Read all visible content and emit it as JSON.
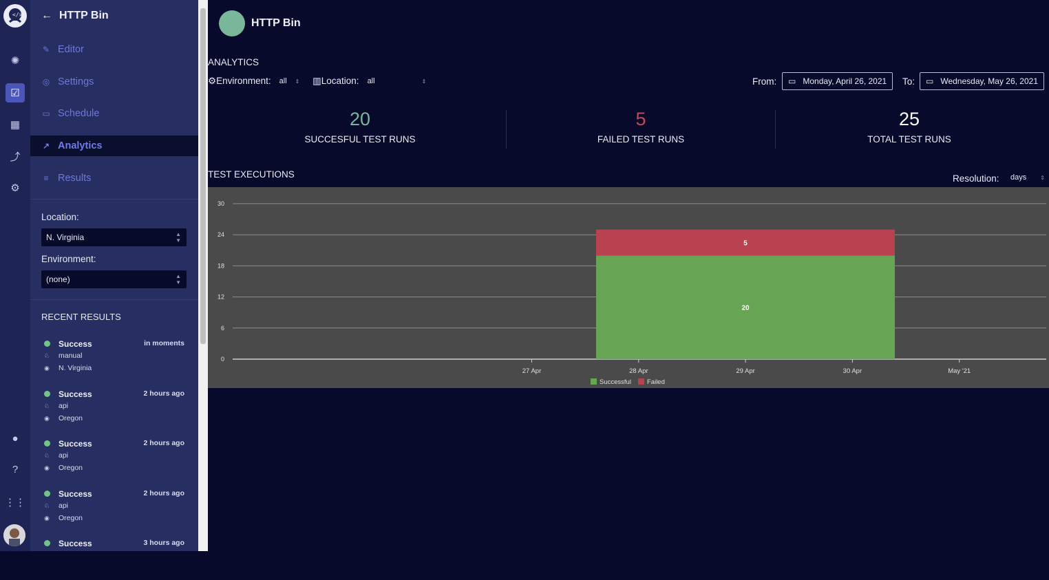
{
  "app": {
    "project_title": "HTTP Bin"
  },
  "rail": {
    "icons": [
      "logo-icon",
      "dashboard-icon",
      "checklist-icon",
      "grid-icon",
      "trend-icon",
      "settings-icon",
      "bulb-icon",
      "help-icon",
      "apps-icon"
    ]
  },
  "sidebar": {
    "back_title": "HTTP Bin",
    "nav": [
      {
        "label": "Editor",
        "icon": "✎"
      },
      {
        "label": "Settings",
        "icon": "◎"
      },
      {
        "label": "Schedule",
        "icon": "▭"
      },
      {
        "label": "Analytics",
        "icon": "↗"
      },
      {
        "label": "Results",
        "icon": "≡"
      }
    ],
    "location_label": "Location:",
    "location_value": "N. Virginia",
    "environment_label": "Environment:",
    "environment_value": "(none)",
    "recent_title": "RECENT RESULTS",
    "recent": [
      {
        "status": "Success",
        "time": "in moments",
        "trigger": "manual",
        "location": "N. Virginia"
      },
      {
        "status": "Success",
        "time": "2 hours ago",
        "trigger": "api",
        "location": "Oregon"
      },
      {
        "status": "Success",
        "time": "2 hours ago",
        "trigger": "api",
        "location": "Oregon"
      },
      {
        "status": "Success",
        "time": "2 hours ago",
        "trigger": "api",
        "location": "Oregon"
      },
      {
        "status": "Success",
        "time": "3 hours ago",
        "trigger": "",
        "location": ""
      }
    ]
  },
  "main": {
    "analytics_title": "ANALYTICS",
    "env_label": "Environment:",
    "env_value": "all",
    "loc_label": "Location:",
    "loc_value": "all",
    "from_label": "From:",
    "from_date": "Monday, April 26, 2021",
    "to_label": "To:",
    "to_date": "Wednesday, May 26, 2021",
    "stats": [
      {
        "value": "20",
        "caption": "SUCCESFUL TEST RUNS",
        "color": "#7ab79a"
      },
      {
        "value": "5",
        "caption": "FAILED TEST RUNS",
        "color": "#c0485b"
      },
      {
        "value": "25",
        "caption": "TOTAL TEST RUNS",
        "color": "#ffffff"
      }
    ],
    "executions_title": "TEST EXECUTIONS",
    "resolution_label": "Resolution:",
    "resolution_value": "days"
  },
  "chart_data": {
    "type": "bar",
    "stacked": true,
    "x_ticks": [
      "27 Apr",
      "28 Apr",
      "29 Apr",
      "30 Apr",
      "May '21"
    ],
    "ylim": [
      0,
      30
    ],
    "y_ticks": [
      0,
      6,
      12,
      18,
      24,
      30
    ],
    "grid": true,
    "legend_placement": "bottom-center",
    "categories": [
      "28 Apr – 30 Apr"
    ],
    "series": [
      {
        "name": "Successful",
        "values": [
          20
        ],
        "color": "#67a453"
      },
      {
        "name": "Failed",
        "values": [
          5
        ],
        "color": "#b84250"
      }
    ]
  }
}
